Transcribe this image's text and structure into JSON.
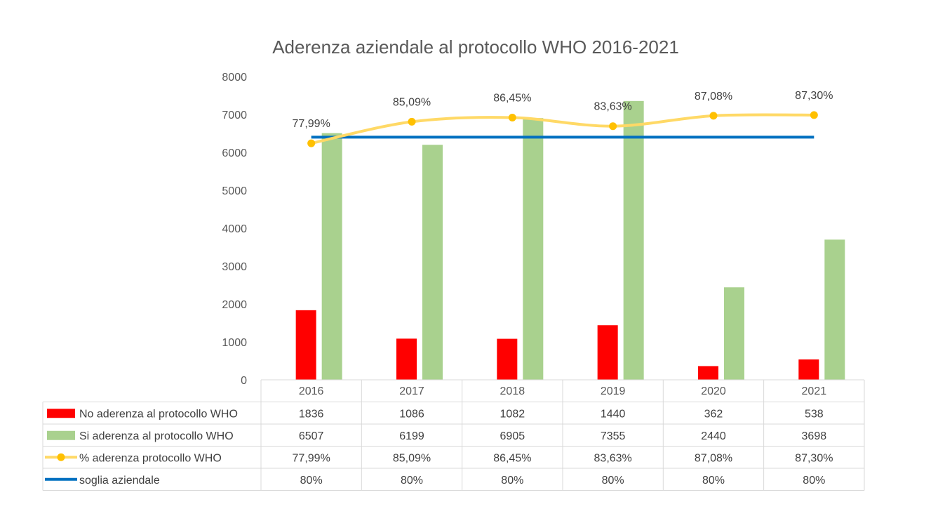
{
  "chart_data": {
    "type": "bar",
    "title": "Aderenza aziendale al protocollo WHO 2016-2021",
    "categories": [
      "2016",
      "2017",
      "2018",
      "2019",
      "2020",
      "2021"
    ],
    "ylim": [
      0,
      8000
    ],
    "yticks": [
      "0",
      "1000",
      "2000",
      "3000",
      "4000",
      "5000",
      "6000",
      "7000",
      "8000"
    ],
    "grid": false,
    "legend": "data-table",
    "series": [
      {
        "name": "No aderenza al protocollo WHO",
        "kind": "bar",
        "color": "#ff0000",
        "values": [
          1836,
          1086,
          1082,
          1440,
          362,
          538
        ],
        "table": [
          "1836",
          "1086",
          "1082",
          "1440",
          "362",
          "538"
        ]
      },
      {
        "name": "Si aderenza al protocollo WHO",
        "kind": "bar",
        "color": "#a9d18e",
        "values": [
          6507,
          6199,
          6905,
          7355,
          2440,
          3698
        ],
        "table": [
          "6507",
          "6199",
          "6905",
          "7355",
          "2440",
          "3698"
        ]
      },
      {
        "name": "% aderenza protocollo WHO",
        "kind": "line-marker",
        "color": "#ffd966",
        "marker_color": "#ffc000",
        "values": [
          77.99,
          85.09,
          86.45,
          83.63,
          87.08,
          87.3
        ],
        "labels": [
          "77,99%",
          "85,09%",
          "86,45%",
          "83,63%",
          "87,08%",
          "87,30%"
        ],
        "table": [
          "77,99%",
          "85,09%",
          "86,45%",
          "83,63%",
          "87,08%",
          "87,30%"
        ]
      },
      {
        "name": "soglia aziendale",
        "kind": "line",
        "color": "#0070c0",
        "values": [
          80,
          80,
          80,
          80,
          80,
          80
        ],
        "table": [
          "80%",
          "80%",
          "80%",
          "80%",
          "80%",
          "80%"
        ]
      }
    ]
  }
}
